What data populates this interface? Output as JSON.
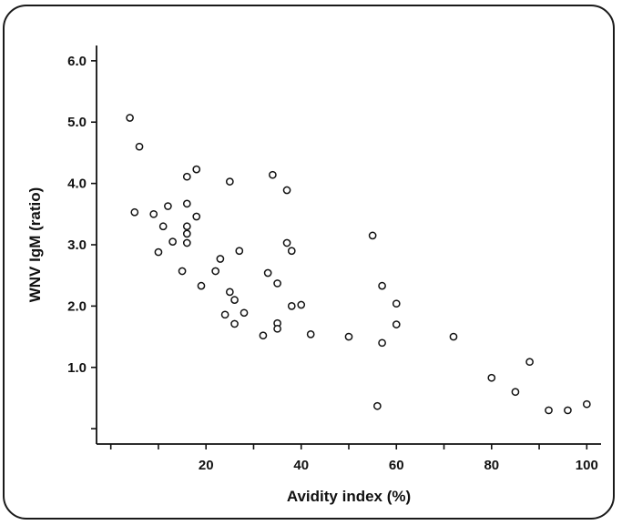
{
  "chart_data": {
    "type": "scatter",
    "xlabel": "Avidity index (%)",
    "ylabel": "WNV IgM (ratio)",
    "xlim": [
      -3,
      103
    ],
    "ylim": [
      -0.25,
      6.25
    ],
    "x_ticks": [
      {
        "value": 0,
        "label": ""
      },
      {
        "value": 10,
        "label": ""
      },
      {
        "value": 20,
        "label": "20"
      },
      {
        "value": 30,
        "label": ""
      },
      {
        "value": 40,
        "label": "40"
      },
      {
        "value": 50,
        "label": ""
      },
      {
        "value": 60,
        "label": "60"
      },
      {
        "value": 70,
        "label": ""
      },
      {
        "value": 80,
        "label": "80"
      },
      {
        "value": 90,
        "label": ""
      },
      {
        "value": 100,
        "label": "100"
      }
    ],
    "y_ticks": [
      {
        "value": 0,
        "label": ""
      },
      {
        "value": 1,
        "label": "1.0"
      },
      {
        "value": 2,
        "label": "2.0"
      },
      {
        "value": 3,
        "label": "3.0"
      },
      {
        "value": 4,
        "label": "4.0"
      },
      {
        "value": 5,
        "label": "5.0"
      },
      {
        "value": 6,
        "label": "6.0"
      }
    ],
    "grid": false,
    "points": [
      {
        "x": 4,
        "y": 5.07
      },
      {
        "x": 6,
        "y": 4.6
      },
      {
        "x": 5,
        "y": 3.53
      },
      {
        "x": 9,
        "y": 3.5
      },
      {
        "x": 10,
        "y": 2.88
      },
      {
        "x": 11,
        "y": 3.3
      },
      {
        "x": 12,
        "y": 3.63
      },
      {
        "x": 13,
        "y": 3.05
      },
      {
        "x": 15,
        "y": 2.57
      },
      {
        "x": 16,
        "y": 4.11
      },
      {
        "x": 16,
        "y": 3.67
      },
      {
        "x": 16,
        "y": 3.3
      },
      {
        "x": 16,
        "y": 3.18
      },
      {
        "x": 16,
        "y": 3.03
      },
      {
        "x": 18,
        "y": 4.23
      },
      {
        "x": 18,
        "y": 3.46
      },
      {
        "x": 19,
        "y": 2.33
      },
      {
        "x": 22,
        "y": 2.57
      },
      {
        "x": 23,
        "y": 2.77
      },
      {
        "x": 24,
        "y": 1.86
      },
      {
        "x": 25,
        "y": 4.03
      },
      {
        "x": 25,
        "y": 2.23
      },
      {
        "x": 26,
        "y": 2.1
      },
      {
        "x": 26,
        "y": 1.71
      },
      {
        "x": 27,
        "y": 2.9
      },
      {
        "x": 28,
        "y": 1.89
      },
      {
        "x": 32,
        "y": 1.52
      },
      {
        "x": 33,
        "y": 2.54
      },
      {
        "x": 34,
        "y": 4.14
      },
      {
        "x": 35,
        "y": 2.37
      },
      {
        "x": 35,
        "y": 1.72
      },
      {
        "x": 35,
        "y": 1.63
      },
      {
        "x": 37,
        "y": 3.89
      },
      {
        "x": 37,
        "y": 3.03
      },
      {
        "x": 38,
        "y": 2.9
      },
      {
        "x": 38,
        "y": 2.0
      },
      {
        "x": 40,
        "y": 2.02
      },
      {
        "x": 42,
        "y": 1.54
      },
      {
        "x": 50,
        "y": 1.5
      },
      {
        "x": 55,
        "y": 3.15
      },
      {
        "x": 56,
        "y": 0.37
      },
      {
        "x": 57,
        "y": 2.33
      },
      {
        "x": 57,
        "y": 1.4
      },
      {
        "x": 60,
        "y": 2.04
      },
      {
        "x": 60,
        "y": 1.7
      },
      {
        "x": 72,
        "y": 1.5
      },
      {
        "x": 80,
        "y": 0.83
      },
      {
        "x": 85,
        "y": 0.6
      },
      {
        "x": 88,
        "y": 1.09
      },
      {
        "x": 92,
        "y": 0.3
      },
      {
        "x": 96,
        "y": 0.3
      },
      {
        "x": 100,
        "y": 0.4
      }
    ]
  }
}
